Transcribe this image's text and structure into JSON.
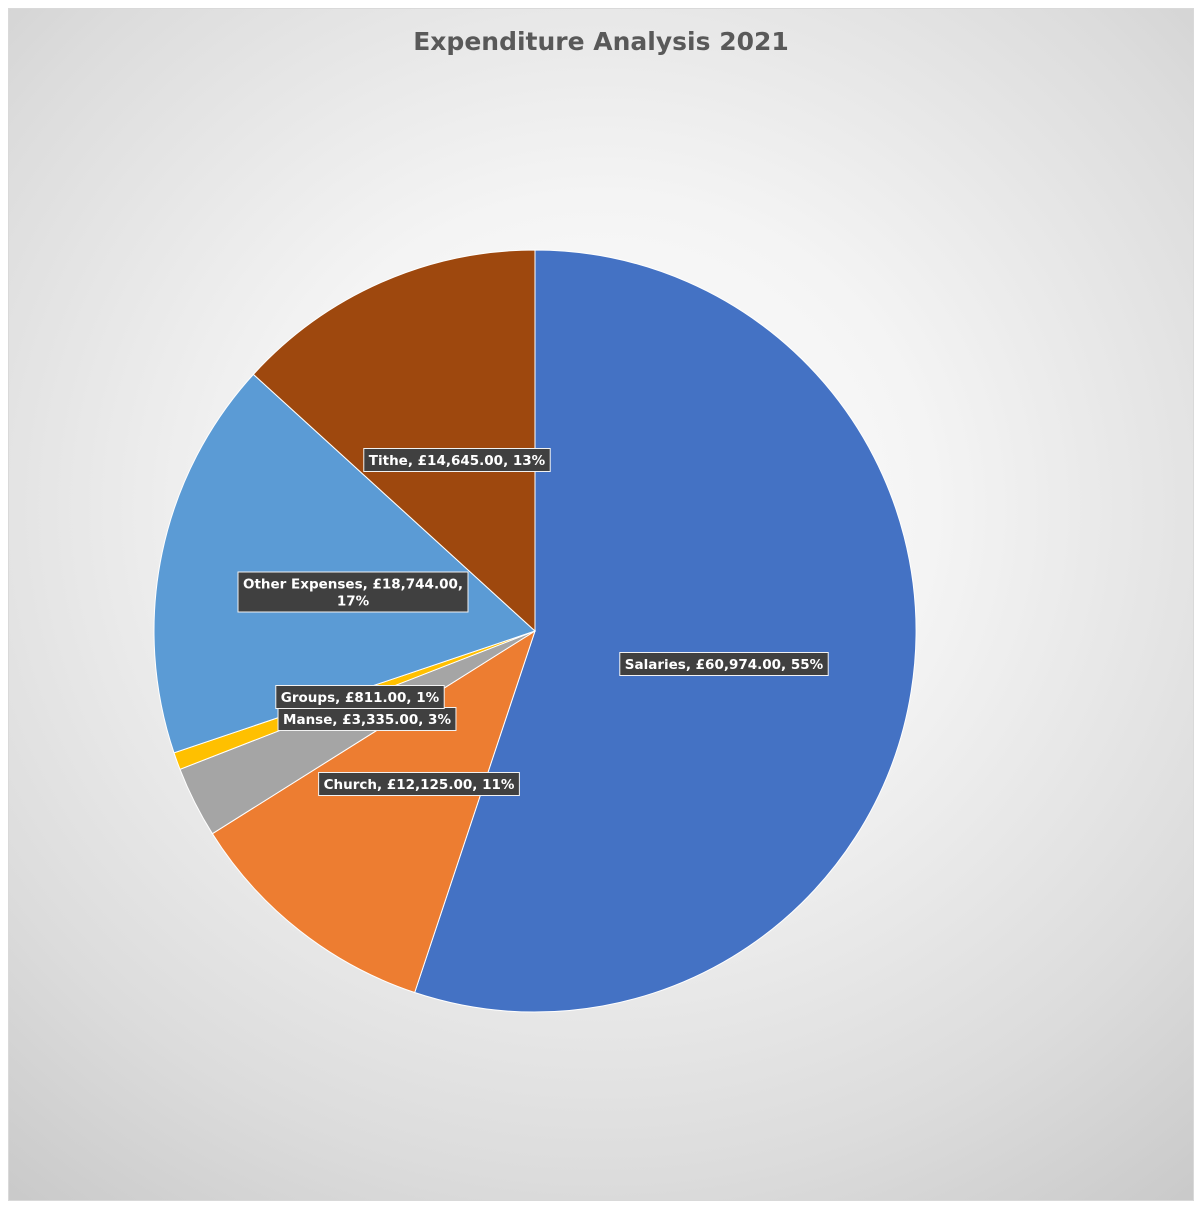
{
  "chart_data": {
    "type": "pie",
    "title": "Expenditure Analysis 2021",
    "slices": [
      {
        "name": "Salaries",
        "value": 60974.0,
        "percent": 55,
        "color": "#4472C4",
        "label_lines": [
          "Salaries, £60,974.00, 55%"
        ]
      },
      {
        "name": "Church",
        "value": 12125.0,
        "percent": 11,
        "color": "#ED7D31",
        "label_lines": [
          "Church, £12,125.00, 11%"
        ]
      },
      {
        "name": "Manse",
        "value": 3335.0,
        "percent": 3,
        "color": "#A5A5A5",
        "label_lines": [
          "Manse, £3,335.00, 3%"
        ]
      },
      {
        "name": "Groups",
        "value": 811.0,
        "percent": 1,
        "color": "#FFC000",
        "label_lines": [
          "Groups, £811.00, 1%"
        ]
      },
      {
        "name": "Other Expenses",
        "value": 18744.0,
        "percent": 17,
        "color": "#5B9BD5",
        "label_lines": [
          "Other Expenses, £18,744.00,",
          "17%"
        ]
      },
      {
        "name": "Tithe",
        "value": 14645.0,
        "percent": 13,
        "color": "#9E480E",
        "label_lines": [
          "Tithe, £14,645.00, 13%"
        ]
      }
    ],
    "start_angle": "12 o'clock",
    "direction": "clockwise",
    "legend": "none",
    "data_labels": "category, value, percentage"
  }
}
